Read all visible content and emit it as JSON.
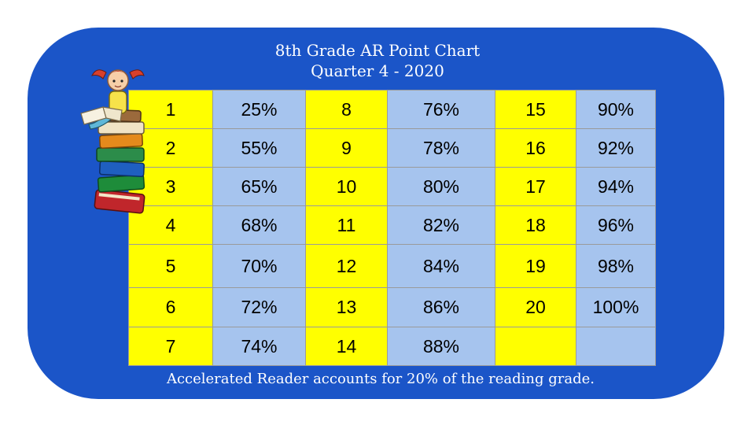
{
  "title": {
    "line1": "8th Grade AR Point Chart",
    "line2": "Quarter 4 - 2020"
  },
  "table": {
    "rows": [
      [
        "1",
        "25%",
        "8",
        "76%",
        "15",
        "90%"
      ],
      [
        "2",
        "55%",
        "9",
        "78%",
        "16",
        "92%"
      ],
      [
        "3",
        "65%",
        "10",
        "80%",
        "17",
        "94%"
      ],
      [
        "4",
        "68%",
        "11",
        "82%",
        "18",
        "96%"
      ],
      [
        "5",
        "70%",
        "12",
        "84%",
        "19",
        "98%"
      ],
      [
        "6",
        "72%",
        "13",
        "86%",
        "20",
        "100%"
      ],
      [
        "7",
        "74%",
        "14",
        "88%",
        "",
        ""
      ]
    ]
  },
  "footer": "Accelerated Reader accounts for 20% of the reading grade.",
  "colors": {
    "panel": "#1b55c8",
    "points_cells": "#ffff00",
    "percent_cells": "#a6c4ee"
  },
  "illustration": "girl-reading-on-book-stack"
}
